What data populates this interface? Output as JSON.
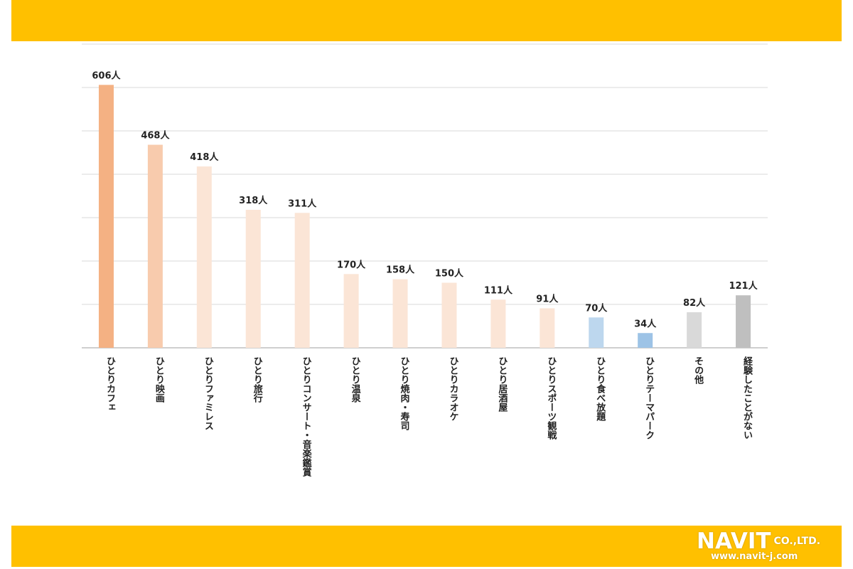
{
  "chart_data": {
    "type": "bar",
    "categories": [
      "ひとりカフェ",
      "ひとり映画",
      "ひとりファミレス",
      "ひとり旅行",
      "ひとりコンサート・音楽鑑賞",
      "ひとり温泉",
      "ひとり焼肉・寿司",
      "ひとりカラオケ",
      "ひとり居酒屋",
      "ひとりスポーツ観戦",
      "ひとり食べ放題",
      "ひとりテーマパーク",
      "その他",
      "経験したことがない"
    ],
    "values": [
      606,
      468,
      418,
      318,
      311,
      170,
      158,
      150,
      111,
      91,
      70,
      34,
      82,
      121
    ],
    "value_labels": [
      "606人",
      "468人",
      "418人",
      "318人",
      "311人",
      "170人",
      "158人",
      "150人",
      "111人",
      "91人",
      "70人",
      "34人",
      "82人",
      "121人"
    ],
    "bar_colors": [
      "#F4B183",
      "#F8CBAD",
      "#FBE5D6",
      "#FBE5D6",
      "#FBE5D6",
      "#FBE5D6",
      "#FBE5D6",
      "#FBE5D6",
      "#FBE5D6",
      "#FBE5D6",
      "#BDD7EE",
      "#9DC3E6",
      "#D9D9D9",
      "#BFBFBF"
    ],
    "title": "",
    "xlabel": "",
    "ylabel": "",
    "ylim": [
      0,
      700
    ],
    "grid": true
  },
  "logo": {
    "text": "NAVIT",
    "suffix": "CO.,LTD.",
    "url": "www.navit-j.com"
  },
  "colors": {
    "band": "#FFC000",
    "gridline": "#D9D9D9",
    "baseline": "#BFBFBF"
  }
}
